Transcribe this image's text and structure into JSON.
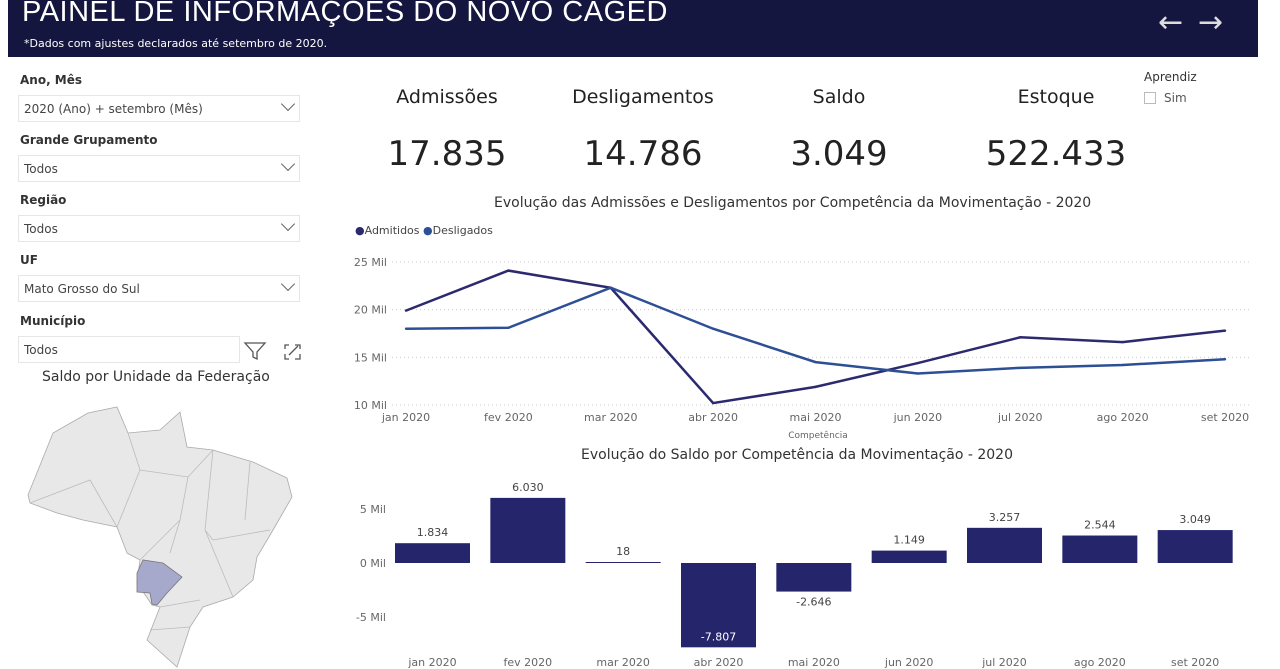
{
  "header": {
    "title": "PAINEL DE INFORMAÇÕES DO NOVO CAGED",
    "subtitle": "*Dados com ajustes declarados até setembro de 2020.",
    "back_icon": "arrow-left-icon",
    "forward_icon": "arrow-right-icon"
  },
  "filters": [
    {
      "label": "Ano, Mês",
      "value": "2020 (Ano) + setembro (Mês)"
    },
    {
      "label": "Grande Grupamento",
      "value": "Todos"
    },
    {
      "label": "Região",
      "value": "Todos"
    },
    {
      "label": "UF",
      "value": "Mato Grosso do Sul"
    },
    {
      "label": "Município",
      "value": "Todos"
    }
  ],
  "aprendiz": {
    "label": "Aprendiz",
    "option": "Sim",
    "checked": false
  },
  "kpis": [
    {
      "label": "Admissões",
      "value": "17.835"
    },
    {
      "label": "Desligamentos",
      "value": "14.786"
    },
    {
      "label": "Saldo",
      "value": "3.049"
    },
    {
      "label": "Estoque",
      "value": "522.433"
    }
  ],
  "map": {
    "title": "Saldo por Unidade da Federação",
    "highlighted": "Mato Grosso do Sul",
    "highlight_color": "#a6a9cc"
  },
  "chart_data": [
    {
      "type": "line",
      "title": "Evolução das Admissões e Desligamentos por Competência da Movimentação - 2020",
      "xlabel": "Competência",
      "ylabel": "",
      "categories": [
        "jan 2020",
        "fev 2020",
        "mar 2020",
        "abr 2020",
        "mai 2020",
        "jun 2020",
        "jul 2020",
        "ago 2020",
        "set 2020"
      ],
      "yticks": [
        "10 Mil",
        "15 Mil",
        "20 Mil",
        "25 Mil"
      ],
      "ylim": [
        10,
        25
      ],
      "series": [
        {
          "name": "Admitidos",
          "color": "#2b2a6e",
          "values": [
            19.9,
            24.1,
            22.3,
            10.2,
            11.9,
            14.4,
            17.1,
            16.6,
            17.8
          ]
        },
        {
          "name": "Desligados",
          "color": "#2d4f96",
          "values": [
            18.0,
            18.1,
            22.3,
            18.0,
            14.5,
            13.3,
            13.9,
            14.2,
            14.8
          ]
        }
      ],
      "legend": "top-left"
    },
    {
      "type": "bar",
      "title": "Evolução do Saldo por Competência da Movimentação - 2020",
      "categories": [
        "jan 2020",
        "fev 2020",
        "mar 2020",
        "abr 2020",
        "mai 2020",
        "jun 2020",
        "jul 2020",
        "ago 2020",
        "set 2020"
      ],
      "values": [
        1834,
        6030,
        18,
        -7807,
        -2646,
        1149,
        3257,
        2544,
        3049
      ],
      "labels": [
        "1.834",
        "6.030",
        "18",
        "-7.807",
        "-2.646",
        "1.149",
        "3.257",
        "2.544",
        "3.049"
      ],
      "yticks": [
        "-5 Mil",
        "0 Mil",
        "5 Mil"
      ],
      "ylim": [
        -8000,
        6500
      ],
      "color": "#24256b"
    }
  ]
}
